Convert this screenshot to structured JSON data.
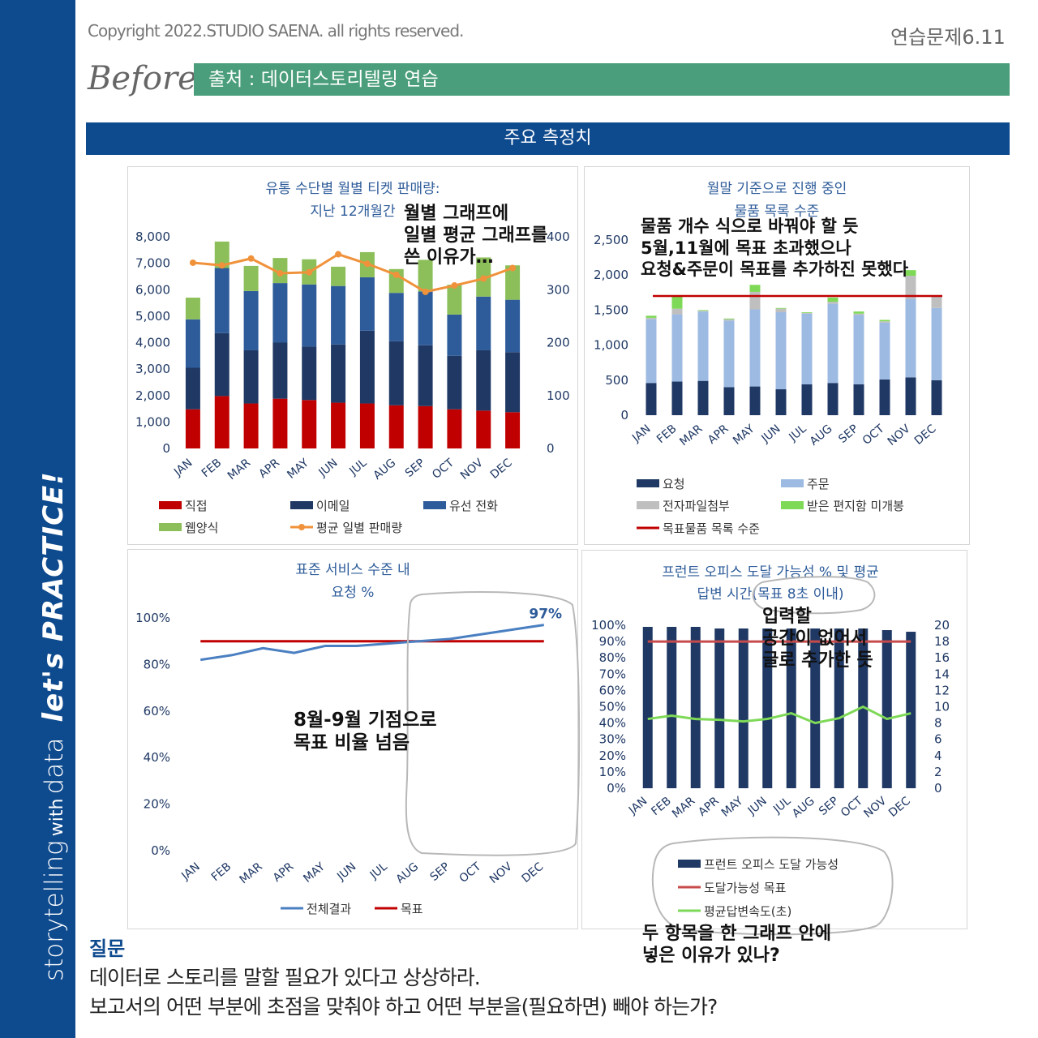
{
  "header": {
    "copyright": "Copyright 2022.STUDIO SAENA. all rights reserved.",
    "exercise": "연습문제6.11",
    "before": "Before",
    "source": "출처 : 데이터스토리텔링 연습",
    "main_title": "주요 측정치"
  },
  "sidebar": {
    "brand": "storytelling",
    "with": "with",
    "data": "data",
    "practice": "let's PRACTICE!"
  },
  "colors": {
    "navy": "#0e4a8e",
    "green_bar": "#4a9e7b",
    "red": "#c00000",
    "dark_blue": "#1f3864",
    "mid_blue": "#2e5c9a",
    "light_green": "#8cbf5a",
    "orange": "#f0923b",
    "light_blue": "#9dbbe2",
    "gray": "#bfbfbf",
    "bright_green": "#7ed957"
  },
  "chart_data": [
    {
      "type": "bar",
      "stacked": true,
      "title": "유통 수단별 월별 티켓 판매량:",
      "subtitle": "지난 12개월간",
      "categories": [
        "JAN",
        "FEB",
        "MAR",
        "APR",
        "MAY",
        "JUN",
        "JUL",
        "AUG",
        "SEP",
        "OCT",
        "NOV",
        "DEC"
      ],
      "ylim": [
        0,
        8000
      ],
      "yticks": [
        "0",
        "1,000",
        "2,000",
        "3,000",
        "4,000",
        "5,000",
        "6,000",
        "7,000",
        "8,000"
      ],
      "y2lim": [
        0,
        400
      ],
      "y2ticks": [
        "0",
        "100",
        "200",
        "300",
        "400"
      ],
      "series": [
        {
          "name": "직접",
          "color": "#c00000",
          "values": [
            1480,
            1980,
            1700,
            1880,
            1830,
            1730,
            1700,
            1630,
            1600,
            1480,
            1430,
            1370
          ]
        },
        {
          "name": "이메일",
          "color": "#1f3864",
          "values": [
            1570,
            2380,
            2010,
            2120,
            2020,
            2200,
            2750,
            2420,
            2300,
            2020,
            2280,
            2270
          ]
        },
        {
          "name": "유선 전화",
          "color": "#2e5c9a",
          "values": [
            1830,
            2460,
            2240,
            2250,
            2350,
            2210,
            2020,
            1830,
            2030,
            1560,
            2030,
            1980
          ]
        },
        {
          "name": "웹양식",
          "color": "#8cbf5a",
          "values": [
            820,
            1000,
            950,
            950,
            950,
            730,
            950,
            900,
            1200,
            1130,
            1480,
            1300
          ]
        },
        {
          "name": "평균 일별 판매량",
          "type": "line",
          "axis": "right",
          "color": "#f0923b",
          "values": [
            351,
            346,
            359,
            331,
            333,
            367,
            349,
            328,
            296,
            308,
            321,
            341
          ]
        }
      ],
      "legend": "bottom"
    },
    {
      "type": "bar",
      "stacked": true,
      "title": "월말 기준으로 진행 중인",
      "subtitle": "물품 목록 수준",
      "categories": [
        "JAN",
        "FEB",
        "MAR",
        "APR",
        "MAY",
        "JUN",
        "JUL",
        "AUG",
        "SEP",
        "OCT",
        "NOV",
        "DEC"
      ],
      "ylim": [
        0,
        2500
      ],
      "yticks": [
        "0",
        "500",
        "1,000",
        "1,500",
        "2,000",
        "2,500"
      ],
      "series": [
        {
          "name": "요청",
          "color": "#1f3864",
          "values": [
            460,
            480,
            490,
            400,
            410,
            370,
            440,
            460,
            440,
            510,
            540,
            500
          ]
        },
        {
          "name": "주문",
          "color": "#9dbbe2",
          "values": [
            910,
            960,
            990,
            950,
            1100,
            1100,
            1010,
            1130,
            990,
            810,
            1120,
            1030
          ]
        },
        {
          "name": "전자파일첨부",
          "color": "#bfbfbf",
          "values": [
            20,
            80,
            10,
            20,
            250,
            50,
            10,
            30,
            20,
            20,
            330,
            160
          ]
        },
        {
          "name": "받은 편지함 미개봉",
          "color": "#7ed957",
          "values": [
            30,
            180,
            10,
            10,
            100,
            10,
            10,
            60,
            30,
            20,
            80,
            0
          ]
        },
        {
          "name": "목표물품 목록 수준",
          "type": "line",
          "color": "#c00000",
          "values": [
            1700,
            1700,
            1700,
            1700,
            1700,
            1700,
            1700,
            1700,
            1700,
            1700,
            1700,
            1700
          ]
        }
      ],
      "legend": "bottom"
    },
    {
      "type": "line",
      "title": "표준 서비스 수준 내",
      "subtitle": "요청 %",
      "categories": [
        "JAN",
        "FEB",
        "MAR",
        "APR",
        "MAY",
        "JUN",
        "JUL",
        "AUG",
        "SEP",
        "OCT",
        "NOV",
        "DEC"
      ],
      "ylim": [
        0,
        100
      ],
      "yticks": [
        "0%",
        "20%",
        "40%",
        "60%",
        "80%",
        "100%"
      ],
      "data_label": "97%",
      "series": [
        {
          "name": "전체결과",
          "color": "#4a7fc1",
          "values": [
            82,
            84,
            87,
            85,
            88,
            88,
            89,
            90,
            91,
            93,
            95,
            97
          ]
        },
        {
          "name": "목표",
          "color": "#c00000",
          "values": [
            90,
            90,
            90,
            90,
            90,
            90,
            90,
            90,
            90,
            90,
            90,
            90
          ]
        }
      ],
      "legend": "bottom"
    },
    {
      "type": "bar",
      "title": "프런트 오피스 도달 가능성 % 및 평균",
      "subtitle": "답변 시간(목표 8초 이내)",
      "categories": [
        "JAN",
        "FEB",
        "MAR",
        "APR",
        "MAY",
        "JUN",
        "JUL",
        "AUG",
        "SEP",
        "OCT",
        "NOV",
        "DEC"
      ],
      "ylim": [
        0,
        100
      ],
      "yticks": [
        "0%",
        "10%",
        "20%",
        "30%",
        "40%",
        "50%",
        "60%",
        "70%",
        "80%",
        "90%",
        "100%"
      ],
      "y2lim": [
        0,
        20
      ],
      "y2ticks": [
        "0",
        "2",
        "4",
        "6",
        "8",
        "10",
        "12",
        "14",
        "16",
        "18",
        "20"
      ],
      "series": [
        {
          "name": "프런트 오피스 도달 가능성",
          "color": "#1f3864",
          "values": [
            99,
            99,
            99,
            98,
            98,
            98,
            98,
            98,
            98,
            98,
            97,
            96
          ]
        },
        {
          "name": "도달가능성 목표",
          "type": "line",
          "color": "#c84b4b",
          "values": [
            90,
            90,
            90,
            90,
            90,
            90,
            90,
            90,
            90,
            90,
            90,
            90
          ]
        },
        {
          "name": "평균답변속도(초)",
          "type": "line",
          "axis": "right",
          "color": "#7ed957",
          "values": [
            8.5,
            8.9,
            8.5,
            8.4,
            8.2,
            8.5,
            9.2,
            8.0,
            8.6,
            10.0,
            8.5,
            9.2
          ]
        }
      ],
      "legend": "bottom"
    }
  ],
  "annotations": {
    "note1": [
      "월별 그래프에",
      "일별 평균 그래프를",
      "쓴 이유가…"
    ],
    "note2": [
      "물품 개수 식으로 바꿔야 할 듯",
      "5월,11월에 목표 초과했으나",
      "요청&주문이 목표를 추가하진 못했다"
    ],
    "note3": [
      "8월-9월 기점으로",
      "목표 비율 넘음"
    ],
    "note4": [
      "입력할",
      "공간이 없어서",
      "글로 추가한 듯"
    ],
    "note5": [
      "두 항목을 한 그래프 안에",
      "넣은 이유가 있나?"
    ]
  },
  "question": {
    "label": "질문",
    "line1": "데이터로 스토리를 말할 필요가 있다고 상상하라.",
    "line2": "보고서의 어떤 부분에 초점을 맞춰야 하고 어떤 부분을(필요하면) 빼야 하는가?"
  }
}
